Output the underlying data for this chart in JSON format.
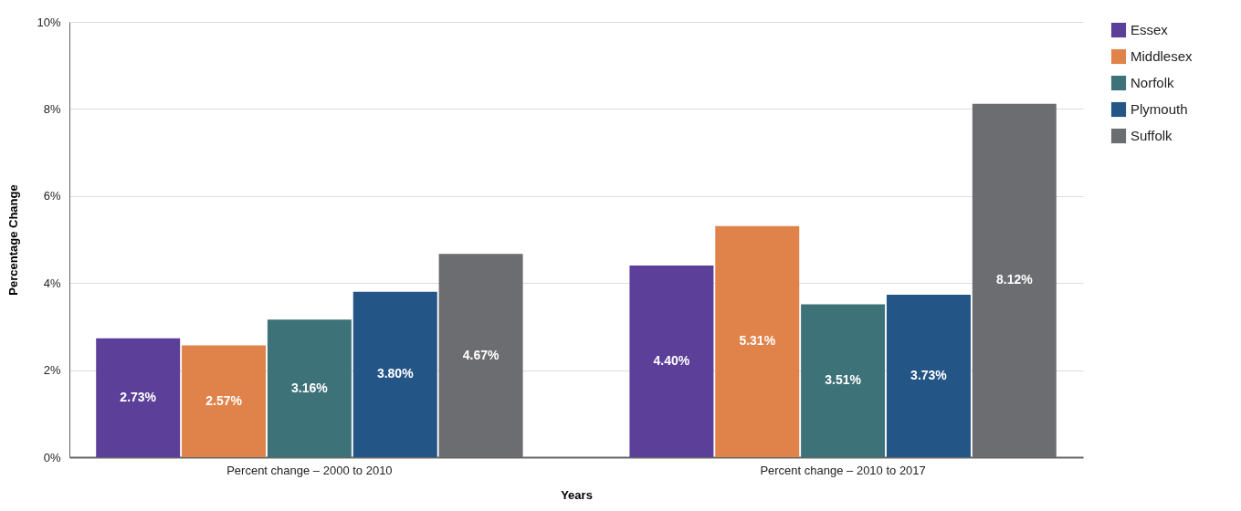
{
  "chart_data": {
    "type": "bar",
    "xlabel": "Years",
    "ylabel": "Percentage Change",
    "categories": [
      "Percent change – 2000 to 2010",
      "Percent change – 2010 to 2017"
    ],
    "series": [
      {
        "name": "Essex",
        "color": "#5b3f99",
        "values": [
          2.73,
          4.4
        ],
        "value_labels": [
          "2.73%",
          "4.40%"
        ]
      },
      {
        "name": "Middlesex",
        "color": "#e0834a",
        "values": [
          2.57,
          5.31
        ],
        "value_labels": [
          "2.57%",
          "5.31%"
        ]
      },
      {
        "name": "Norfolk",
        "color": "#3e7279",
        "values": [
          3.16,
          3.51
        ],
        "value_labels": [
          "3.16%",
          "3.51%"
        ]
      },
      {
        "name": "Plymouth",
        "color": "#235586",
        "values": [
          3.8,
          3.73
        ],
        "value_labels": [
          "3.80%",
          "3.73%"
        ]
      },
      {
        "name": "Suffolk",
        "color": "#6c6d70",
        "values": [
          4.67,
          8.12
        ],
        "value_labels": [
          "4.67%",
          "8.12%"
        ]
      }
    ],
    "ylim": [
      0,
      10
    ],
    "yticks": [
      {
        "value": 0,
        "label": "0%"
      },
      {
        "value": 2,
        "label": "2%"
      },
      {
        "value": 4,
        "label": "4%"
      },
      {
        "value": 6,
        "label": "6%"
      },
      {
        "value": 8,
        "label": "8%"
      },
      {
        "value": 10,
        "label": "10%"
      }
    ],
    "grid": "y",
    "legend": "right"
  }
}
